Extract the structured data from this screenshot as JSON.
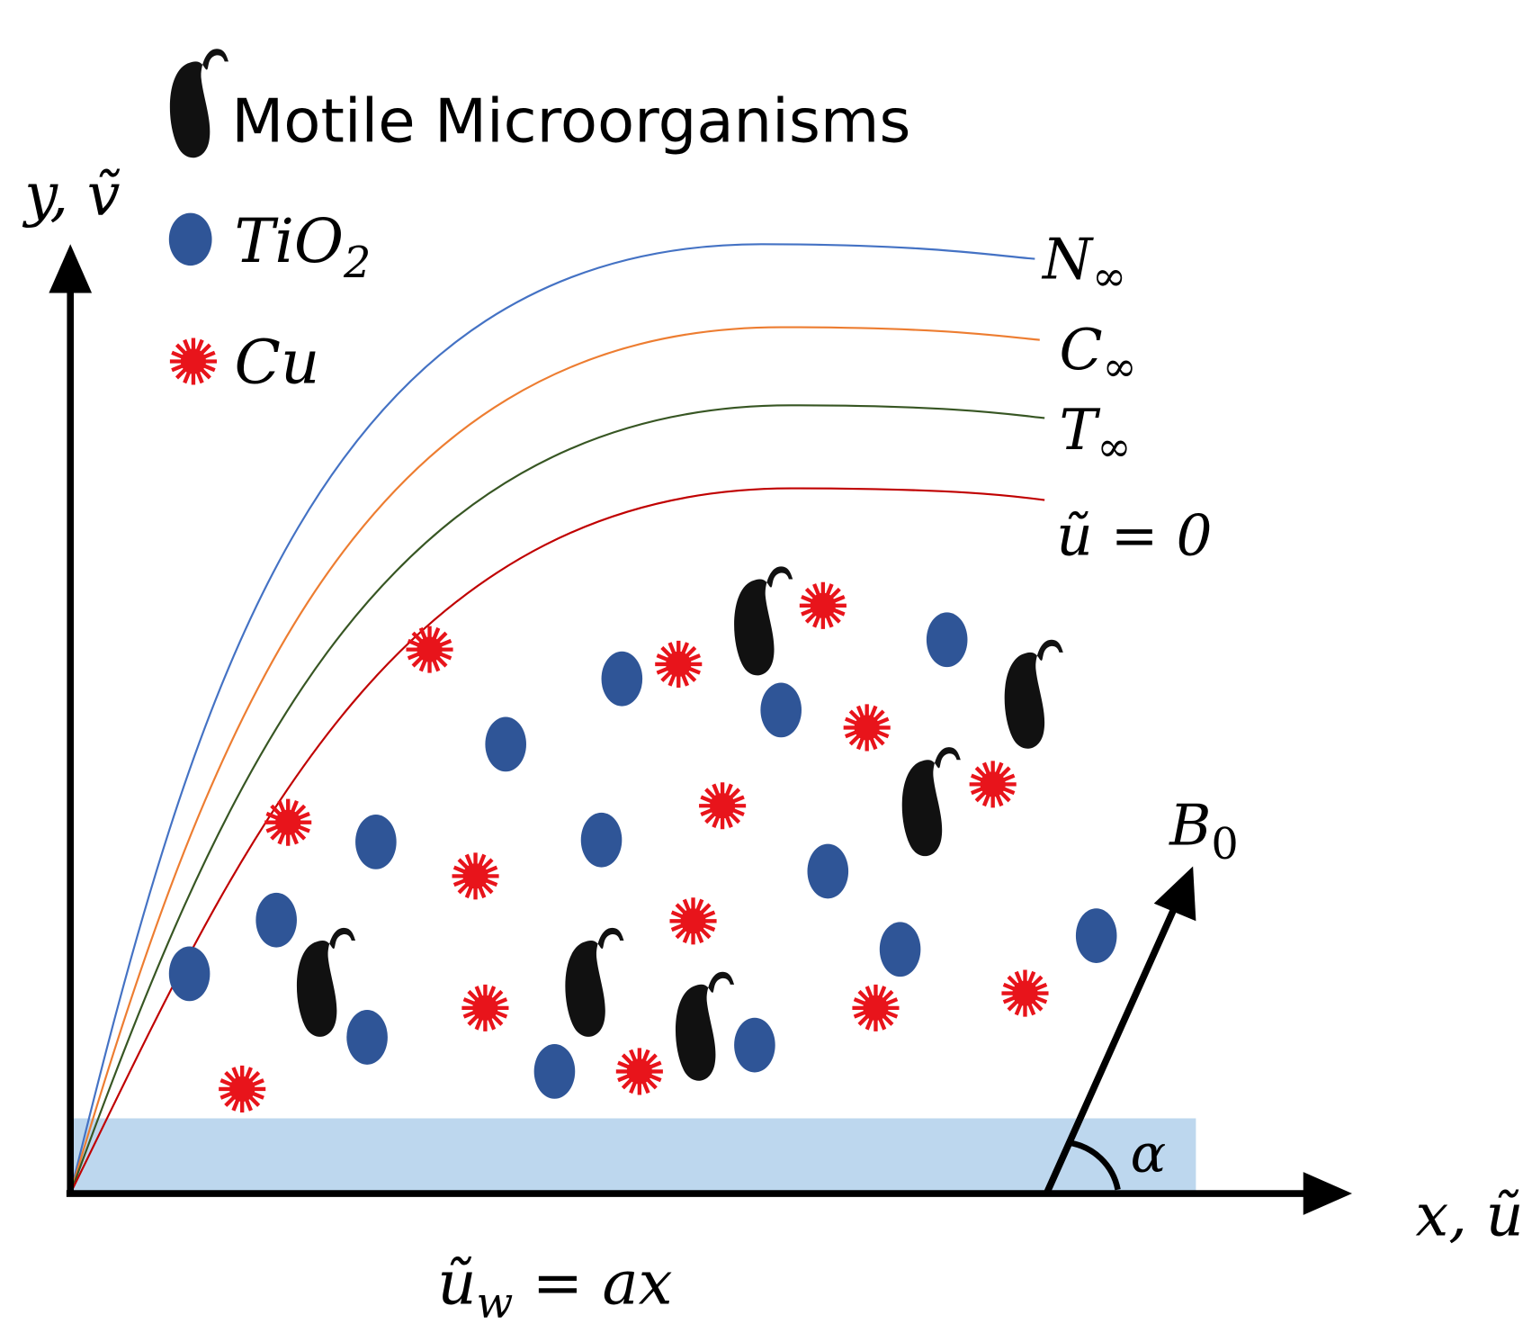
{
  "legend": {
    "microorganisms": "Motile Microorganisms",
    "tio2": {
      "text": "TiO",
      "sub": "2"
    },
    "cu": "Cu"
  },
  "axes": {
    "y": "y, ṽ",
    "x": "x, ũ"
  },
  "curves": [
    {
      "label": "N",
      "sub": "∞"
    },
    {
      "label": "C",
      "sub": "∞"
    },
    {
      "label": "T",
      "sub": "∞"
    },
    {
      "label": "ũ = 0"
    }
  ],
  "field": {
    "label": "B",
    "sub": "0",
    "angle": "α"
  },
  "wall": {
    "text": "ũ",
    "sub": "w",
    "rest": " = ax"
  }
}
